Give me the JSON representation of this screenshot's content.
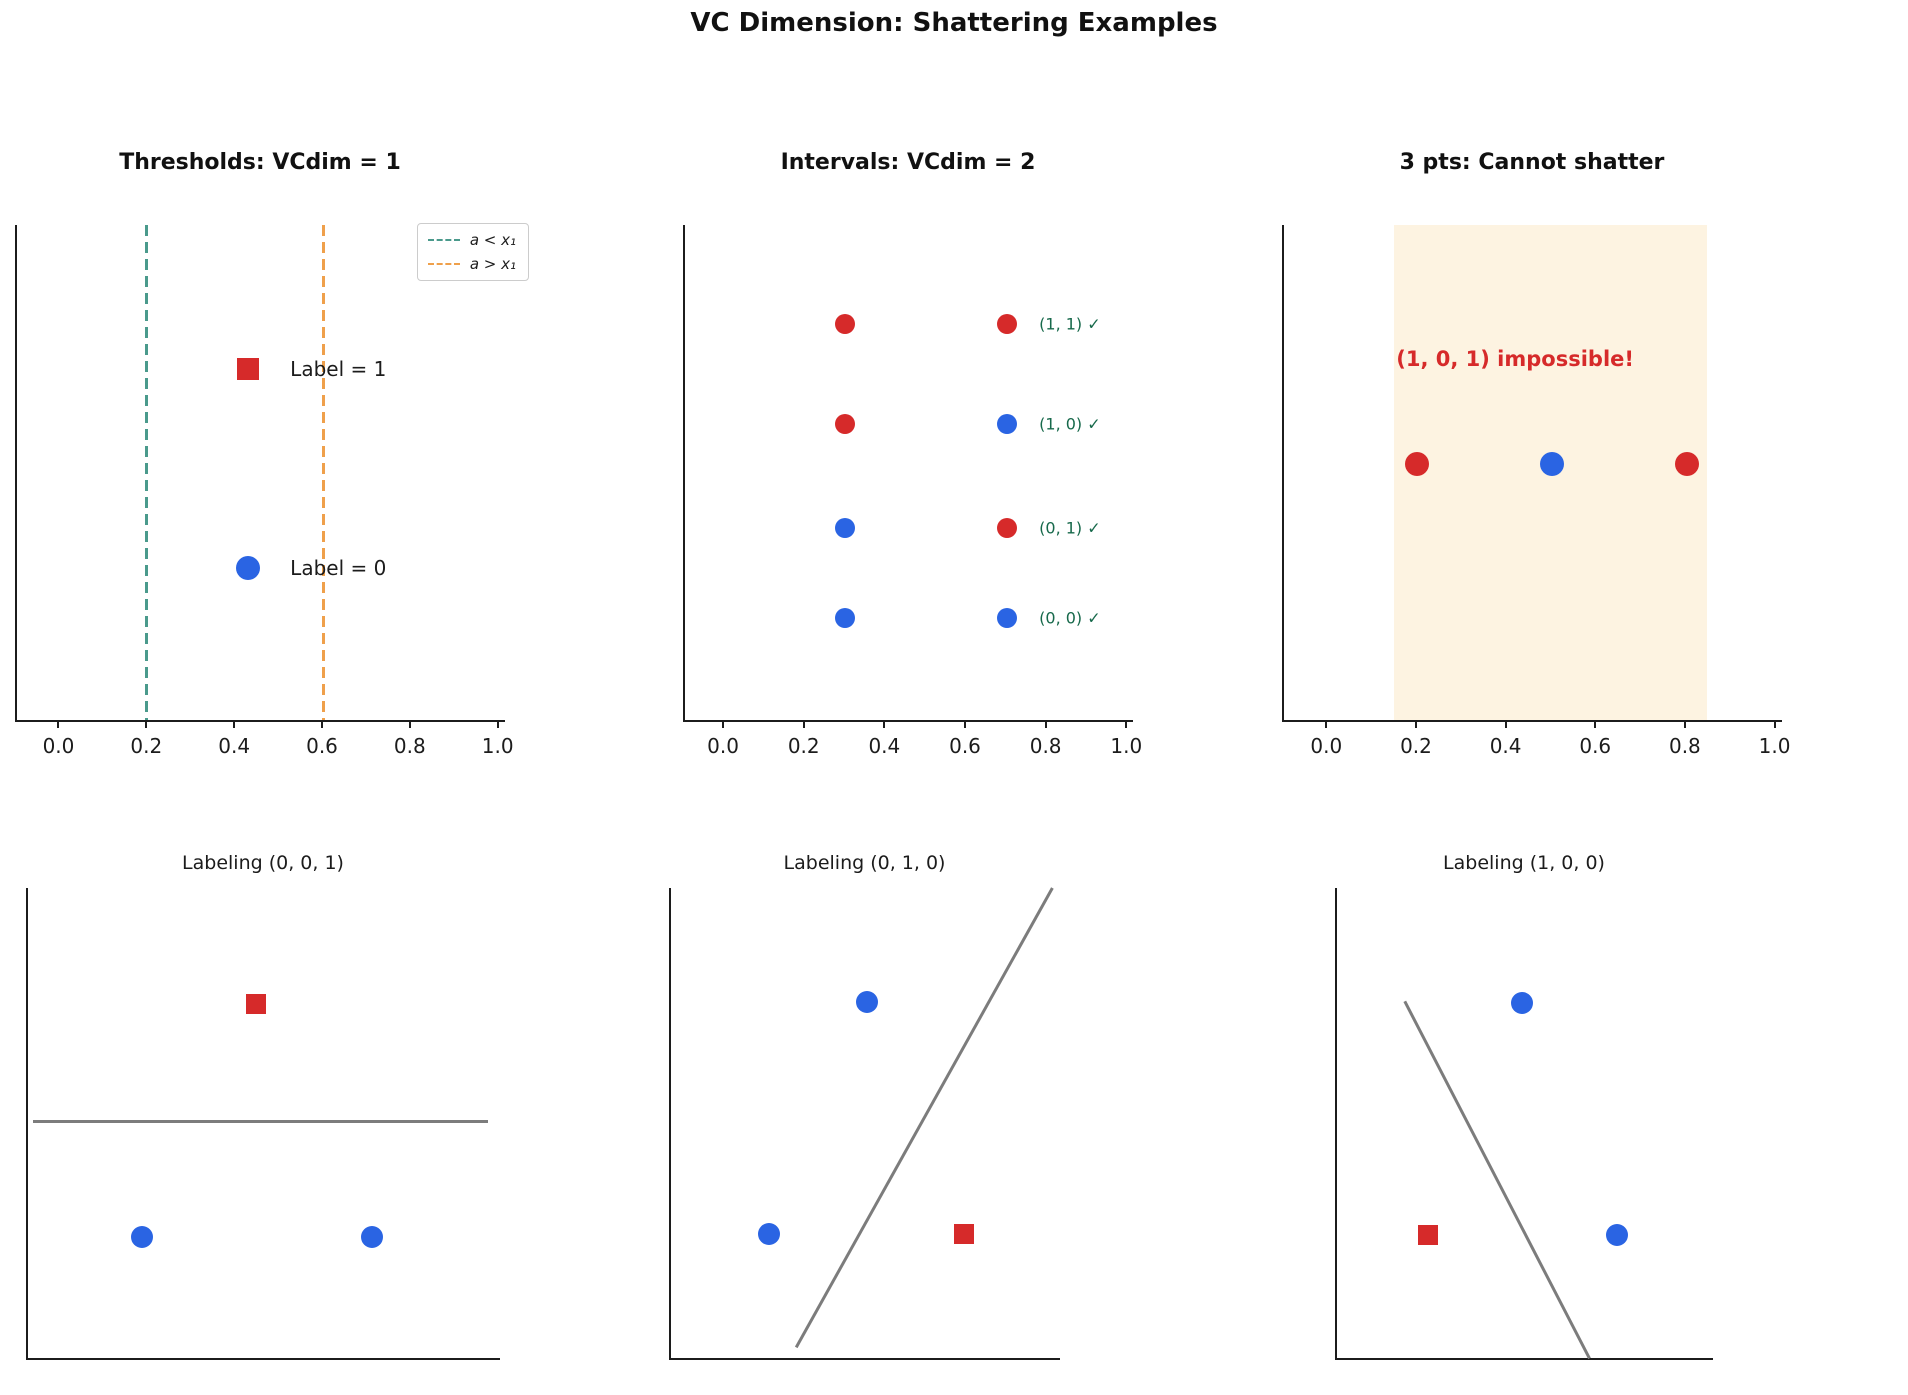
{
  "figure": {
    "title": "VC Dimension: Shattering Examples"
  },
  "colors": {
    "red": "#d62a2a",
    "blue": "#2a64e3",
    "teal": "#4a9a8c",
    "orange": "#efa04b",
    "green": "#17694b",
    "gray": "#7c7c7c",
    "span": "#fdf3e1",
    "axis": "#1c1c1c",
    "text": "#1c1c1c"
  },
  "chart_data": [
    {
      "type": "scatter",
      "title": "Thresholds: VCdim = 1",
      "xlim": [
        0.0,
        1.0
      ],
      "xticks": [
        "0.0",
        "0.2",
        "0.4",
        "0.6",
        "0.8",
        "1.0"
      ],
      "vlines": [
        {
          "x": 0.2,
          "color": "teal",
          "style": "dashed"
        },
        {
          "x": 0.6,
          "color": "orange",
          "style": "dashed"
        }
      ],
      "legend": [
        {
          "label": "a < x₁",
          "color": "teal",
          "linestyle": "dashed"
        },
        {
          "label": "a > x₁",
          "color": "orange",
          "linestyle": "dashed"
        }
      ],
      "points": [
        {
          "x": 0.43,
          "y": 0.71,
          "marker": "square",
          "color": "red"
        },
        {
          "x": 0.43,
          "y": 0.31,
          "marker": "circle",
          "color": "blue"
        }
      ],
      "annotations": [
        {
          "text": "Label = 1",
          "x": 0.525,
          "y": 0.71,
          "color": "text",
          "kind": "plain"
        },
        {
          "text": "Label = 0",
          "x": 0.525,
          "y": 0.31,
          "color": "text",
          "kind": "plain"
        }
      ],
      "span": null,
      "lines": []
    },
    {
      "type": "scatter",
      "title": "Intervals: VCdim = 2",
      "xlim": [
        0.0,
        1.0
      ],
      "xticks": [
        "0.0",
        "0.2",
        "0.4",
        "0.6",
        "0.8",
        "1.0"
      ],
      "vlines": [],
      "legend": [],
      "points": [
        {
          "x": 0.3,
          "y": 0.8,
          "marker": "circle",
          "color": "red"
        },
        {
          "x": 0.7,
          "y": 0.8,
          "marker": "circle",
          "color": "red"
        },
        {
          "x": 0.3,
          "y": 0.6,
          "marker": "circle",
          "color": "red"
        },
        {
          "x": 0.7,
          "y": 0.6,
          "marker": "circle",
          "color": "blue"
        },
        {
          "x": 0.3,
          "y": 0.39,
          "marker": "circle",
          "color": "blue"
        },
        {
          "x": 0.7,
          "y": 0.39,
          "marker": "circle",
          "color": "red"
        },
        {
          "x": 0.3,
          "y": 0.21,
          "marker": "circle",
          "color": "blue"
        },
        {
          "x": 0.7,
          "y": 0.21,
          "marker": "circle",
          "color": "blue"
        }
      ],
      "annotations": [
        {
          "text": "(1, 1) ✓",
          "x": 0.78,
          "y": 0.8,
          "color": "green",
          "kind": "check"
        },
        {
          "text": "(1, 0) ✓",
          "x": 0.78,
          "y": 0.6,
          "color": "green",
          "kind": "check"
        },
        {
          "text": "(0, 1) ✓",
          "x": 0.78,
          "y": 0.39,
          "color": "green",
          "kind": "check"
        },
        {
          "text": "(0, 0) ✓",
          "x": 0.78,
          "y": 0.21,
          "color": "green",
          "kind": "check"
        }
      ],
      "span": null,
      "lines": []
    },
    {
      "type": "scatter",
      "title": "3 pts: Cannot shatter",
      "xlim": [
        0.0,
        1.0
      ],
      "xticks": [
        "0.0",
        "0.2",
        "0.4",
        "0.6",
        "0.8",
        "1.0"
      ],
      "vlines": [],
      "legend": [],
      "points": [
        {
          "x": 0.2,
          "y": 0.52,
          "marker": "circle",
          "color": "red"
        },
        {
          "x": 0.5,
          "y": 0.52,
          "marker": "circle",
          "color": "blue"
        },
        {
          "x": 0.8,
          "y": 0.52,
          "marker": "circle",
          "color": "red"
        }
      ],
      "annotations": [
        {
          "text": "(1, 0, 1) impossible!",
          "x": 0.155,
          "y": 0.73,
          "color": "red",
          "kind": "warning"
        }
      ],
      "span": {
        "x1": 0.15,
        "x2": 0.85,
        "color": "span"
      },
      "lines": []
    },
    {
      "type": "scatter",
      "title": "Labeling (0, 0, 1)",
      "xticks": [],
      "vlines": [],
      "legend": [],
      "points": [
        {
          "x": 0.48,
          "y": 0.755,
          "marker": "square",
          "color": "red"
        },
        {
          "x": 0.24,
          "y": 0.26,
          "marker": "circle",
          "color": "blue"
        },
        {
          "x": 0.725,
          "y": 0.26,
          "marker": "circle",
          "color": "blue"
        }
      ],
      "annotations": [],
      "span": null,
      "lines": [
        {
          "x1": 0.01,
          "y1": 0.505,
          "x2": 0.97,
          "y2": 0.505,
          "color": "gray"
        }
      ]
    },
    {
      "type": "scatter",
      "title": "Labeling (0, 1, 0)",
      "xticks": [],
      "vlines": [],
      "legend": [],
      "points": [
        {
          "x": 0.5,
          "y": 0.758,
          "marker": "circle",
          "color": "blue"
        },
        {
          "x": 0.25,
          "y": 0.268,
          "marker": "circle",
          "color": "blue"
        },
        {
          "x": 0.75,
          "y": 0.268,
          "marker": "square",
          "color": "red"
        }
      ],
      "annotations": [],
      "span": null,
      "lines": [
        {
          "x1": 0.32,
          "y1": 0.027,
          "x2": 0.975,
          "y2": 1.0,
          "color": "gray"
        }
      ]
    },
    {
      "type": "scatter",
      "title": "Labeling (1, 0, 0)",
      "xticks": [],
      "vlines": [],
      "legend": [],
      "points": [
        {
          "x": 0.49,
          "y": 0.757,
          "marker": "circle",
          "color": "blue"
        },
        {
          "x": 0.24,
          "y": 0.265,
          "marker": "square",
          "color": "red"
        },
        {
          "x": 0.74,
          "y": 0.265,
          "marker": "circle",
          "color": "blue"
        }
      ],
      "annotations": [],
      "span": null,
      "lines": [
        {
          "x1": 0.18,
          "y1": 0.761,
          "x2": 0.669,
          "y2": 0.004,
          "color": "gray"
        }
      ]
    }
  ]
}
